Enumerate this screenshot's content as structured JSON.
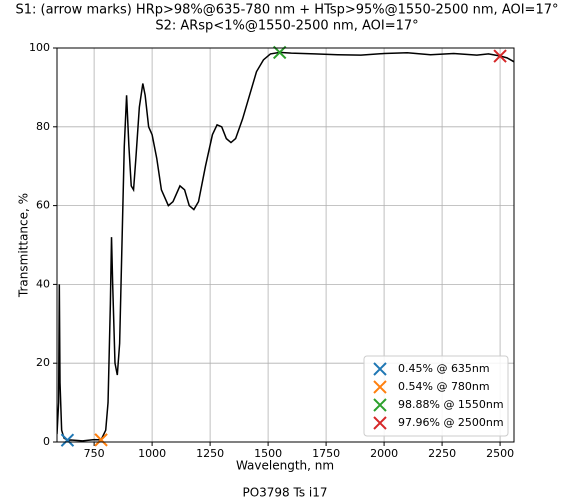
{
  "chart_data": {
    "type": "line",
    "title": [
      "S1: (arrow marks) HRp>98%@635-780 nm + HTsp>95%@1550-2500 nm, AOI=17°",
      "S2: ARsp<1%@1550-2500 nm, AOI=17°"
    ],
    "x_label": "Wavelength, nm",
    "y_label": "Transmittance, %",
    "caption": "PO3798 Ts i17",
    "xlim": [
      590,
      2560
    ],
    "ylim": [
      0,
      100
    ],
    "xticks": [
      750,
      1000,
      1250,
      1500,
      1750,
      2000,
      2250,
      2500
    ],
    "yticks": [
      0,
      20,
      40,
      60,
      80,
      100
    ],
    "grid": true,
    "legend": "lower right",
    "series": [
      {
        "color": "#000000",
        "x": [
          590,
          597,
          600,
          603,
          610,
          620,
          635,
          650,
          700,
          750,
          780,
          800,
          810,
          820,
          825,
          830,
          840,
          850,
          860,
          870,
          880,
          890,
          900,
          910,
          920,
          930,
          945,
          960,
          970,
          985,
          1000,
          1020,
          1040,
          1070,
          1090,
          1120,
          1140,
          1160,
          1180,
          1200,
          1230,
          1260,
          1280,
          1300,
          1320,
          1340,
          1360,
          1390,
          1420,
          1450,
          1480,
          1510,
          1550,
          1600,
          1700,
          1800,
          1900,
          2000,
          2100,
          2200,
          2300,
          2400,
          2450,
          2500,
          2530,
          2560
        ],
        "values": [
          2,
          10,
          40,
          15,
          3,
          1,
          0.45,
          0.5,
          0.3,
          0.6,
          0.54,
          3,
          10,
          35,
          52,
          40,
          20,
          17,
          25,
          50,
          75,
          88,
          75,
          65,
          64,
          72,
          85,
          91,
          88,
          80,
          78,
          72,
          64,
          60,
          61,
          65,
          64,
          60,
          59,
          61,
          70,
          78,
          80.5,
          80,
          77,
          76,
          77,
          82,
          88,
          94,
          97,
          98.5,
          98.88,
          98.7,
          98.5,
          98.3,
          98.2,
          98.6,
          98.8,
          98.3,
          98.6,
          98.2,
          98.5,
          97.96,
          97.5,
          96.5
        ]
      },
      {
        "name": "0.45% @ 635nm",
        "color": "#1f77b4",
        "marker": "x",
        "x": [
          635
        ],
        "values": [
          0.45
        ]
      },
      {
        "name": "0.54% @ 780nm",
        "color": "#ff7f0e",
        "marker": "x",
        "x": [
          780
        ],
        "values": [
          0.54
        ]
      },
      {
        "name": "98.88% @ 1550nm",
        "color": "#2ca02c",
        "marker": "x",
        "x": [
          1550
        ],
        "values": [
          98.88
        ]
      },
      {
        "name": "97.96% @ 2500nm",
        "color": "#d62728",
        "marker": "x",
        "x": [
          2500
        ],
        "values": [
          97.96
        ]
      }
    ]
  }
}
